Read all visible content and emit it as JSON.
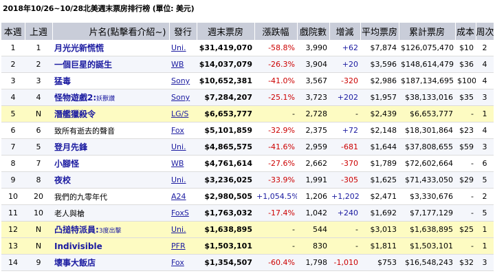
{
  "title": "2018年10/26~10/28北美週末票房排行榜 (單位: 美元)",
  "colors": {
    "header_bg": "#c9cdd9",
    "highlight_row": "#fdfbc2",
    "alt_row": "#f4f6fb",
    "link": "#1a1aa0",
    "negative": "#cc0000"
  },
  "columns": [
    "本週",
    "上週",
    "片名(點擊看介紹~)",
    "發行",
    "週末票房",
    "漲跌幅",
    "戲院數",
    "增減",
    "平均票房",
    "累計票房",
    "成本",
    "周次"
  ],
  "rows": [
    {
      "rank": "1",
      "last": "1",
      "title": "月光光新慌慌",
      "sub": "",
      "dist": "Uni.",
      "weekend": "$31,419,070",
      "change": "-58.8%",
      "theaters": "3,990",
      "delta": "+62",
      "avg": "$7,874",
      "total": "$126,075,470",
      "budget": "$10",
      "weeks": "2",
      "hl": false,
      "alt": false,
      "plain": false
    },
    {
      "rank": "2",
      "last": "2",
      "title": "一個巨星的誕生",
      "sub": "",
      "dist": "WB",
      "weekend": "$14,037,079",
      "change": "-26.3%",
      "theaters": "3,904",
      "delta": "+20",
      "avg": "$3,596",
      "total": "$148,614,479",
      "budget": "$36",
      "weeks": "4",
      "hl": false,
      "alt": true,
      "plain": false
    },
    {
      "rank": "3",
      "last": "3",
      "title": "猛毒",
      "sub": "",
      "dist": "Sony",
      "weekend": "$10,652,381",
      "change": "-41.0%",
      "theaters": "3,567",
      "delta": "-320",
      "avg": "$2,986",
      "total": "$187,134,695",
      "budget": "$100",
      "weeks": "4",
      "hl": false,
      "alt": false,
      "plain": false
    },
    {
      "rank": "4",
      "last": "4",
      "title": "怪物遊戲2:",
      "sub": "妖獸讚",
      "dist": "Sony",
      "weekend": "$7,284,207",
      "change": "-25.1%",
      "theaters": "3,723",
      "delta": "+202",
      "avg": "$1,957",
      "total": "$38,133,016",
      "budget": "$35",
      "weeks": "3",
      "hl": false,
      "alt": true,
      "plain": false
    },
    {
      "rank": "5",
      "last": "N",
      "title": "潛艦獵殺令",
      "sub": "",
      "dist": "LG/S",
      "weekend": "$6,653,777",
      "change": "-",
      "theaters": "2,728",
      "delta": "-",
      "avg": "$2,439",
      "total": "$6,653,777",
      "budget": "-",
      "weeks": "1",
      "hl": true,
      "alt": false,
      "plain": false
    },
    {
      "rank": "6",
      "last": "6",
      "title": "致所有逝去的聲音",
      "sub": "",
      "dist": "Fox",
      "weekend": "$5,101,859",
      "change": "-32.9%",
      "theaters": "2,375",
      "delta": "+72",
      "avg": "$2,148",
      "total": "$18,301,864",
      "budget": "$23",
      "weeks": "4",
      "hl": false,
      "alt": false,
      "plain": true
    },
    {
      "rank": "7",
      "last": "5",
      "title": "登月先鋒",
      "sub": "",
      "dist": "Uni.",
      "weekend": "$4,865,575",
      "change": "-41.6%",
      "theaters": "2,959",
      "delta": "-681",
      "avg": "$1,644",
      "total": "$37,808,655",
      "budget": "$59",
      "weeks": "3",
      "hl": false,
      "alt": true,
      "plain": false
    },
    {
      "rank": "8",
      "last": "7",
      "title": "小腳怪",
      "sub": "",
      "dist": "WB",
      "weekend": "$4,761,614",
      "change": "-27.6%",
      "theaters": "2,662",
      "delta": "-370",
      "avg": "$1,789",
      "total": "$72,602,664",
      "budget": "-",
      "weeks": "6",
      "hl": false,
      "alt": false,
      "plain": false
    },
    {
      "rank": "9",
      "last": "8",
      "title": "夜校",
      "sub": "",
      "dist": "Uni.",
      "weekend": "$3,236,025",
      "change": "-33.9%",
      "theaters": "1,991",
      "delta": "-305",
      "avg": "$1,625",
      "total": "$71,433,050",
      "budget": "$29",
      "weeks": "5",
      "hl": false,
      "alt": true,
      "plain": false
    },
    {
      "rank": "10",
      "last": "20",
      "title": "我們的九零年代",
      "sub": "",
      "dist": "A24",
      "weekend": "$2,980,505",
      "change": "+1,054.5%",
      "theaters": "1,206",
      "delta": "+1,202",
      "avg": "$2,471",
      "total": "$3,330,676",
      "budget": "-",
      "weeks": "2",
      "hl": false,
      "alt": false,
      "plain": true
    },
    {
      "rank": "11",
      "last": "10",
      "title": "老人與槍",
      "sub": "",
      "dist": "FoxS",
      "weekend": "$1,763,032",
      "change": "-17.4%",
      "theaters": "1,042",
      "delta": "+240",
      "avg": "$1,692",
      "total": "$7,177,129",
      "budget": "-",
      "weeks": "5",
      "hl": false,
      "alt": true,
      "plain": true
    },
    {
      "rank": "12",
      "last": "N",
      "title": "凸搥特派員:",
      "sub": "3度出擊",
      "dist": "Uni.",
      "weekend": "$1,638,895",
      "change": "-",
      "theaters": "544",
      "delta": "-",
      "avg": "$3,013",
      "total": "$1,638,895",
      "budget": "$25",
      "weeks": "1",
      "hl": true,
      "alt": false,
      "plain": false
    },
    {
      "rank": "13",
      "last": "N",
      "title": "Indivisible",
      "sub": "",
      "dist": "PFR",
      "weekend": "$1,503,101",
      "change": "-",
      "theaters": "830",
      "delta": "-",
      "avg": "$1,811",
      "total": "$1,503,101",
      "budget": "-",
      "weeks": "1",
      "hl": true,
      "alt": false,
      "plain": false
    },
    {
      "rank": "14",
      "last": "9",
      "title": "壞事大飯店",
      "sub": "",
      "dist": "Fox",
      "weekend": "$1,354,507",
      "change": "-60.4%",
      "theaters": "1,798",
      "delta": "-1,010",
      "avg": "$753",
      "total": "$16,548,243",
      "budget": "$32",
      "weeks": "3",
      "hl": false,
      "alt": true,
      "plain": false
    }
  ]
}
